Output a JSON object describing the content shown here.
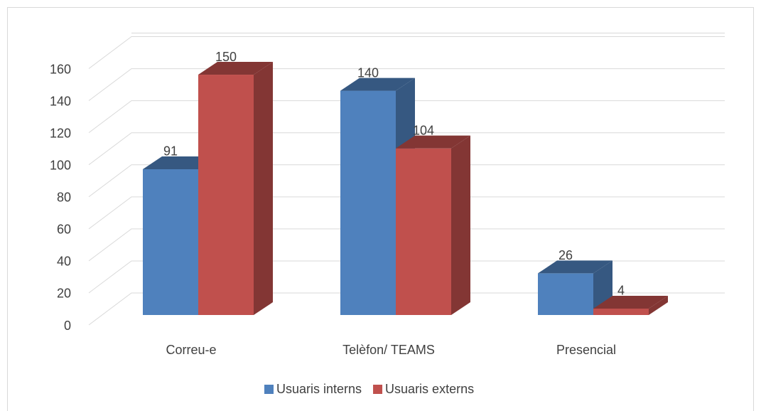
{
  "chart_data": {
    "type": "bar3d",
    "categories": [
      "Correu-e",
      "Telèfon/ TEAMS",
      "Presencial"
    ],
    "series": [
      {
        "name": "Usuaris interns",
        "color": "#4f81bd",
        "values": [
          91,
          140,
          26
        ]
      },
      {
        "name": "Usuaris externs",
        "color": "#c0504d",
        "values": [
          150,
          104,
          4
        ]
      }
    ],
    "ylim": [
      0,
      160
    ],
    "yticks": [
      0,
      20,
      40,
      60,
      80,
      100,
      120,
      140,
      160
    ],
    "grid": true,
    "legend": "bottom",
    "data_labels": true
  }
}
